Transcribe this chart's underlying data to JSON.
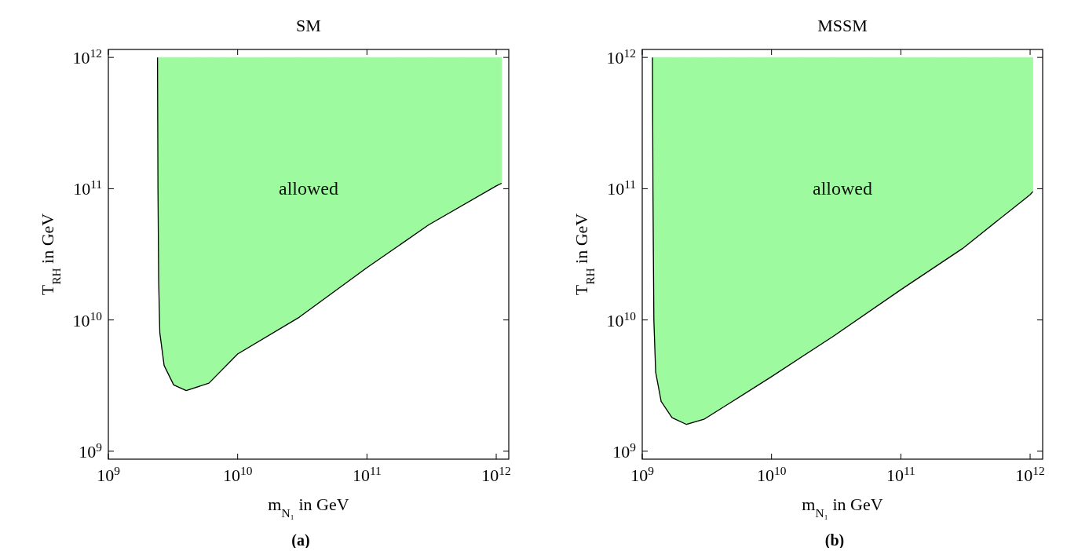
{
  "chart_data": [
    {
      "type": "line",
      "title": "SM",
      "xlabel": "m$_{N₁}$ in GeV",
      "ylabel": "T$_{RH}$ in GeV",
      "log": "xy",
      "grid": false,
      "xlim": [
        1000000000.0,
        1250000000000.0
      ],
      "ylim": [
        870000000.0,
        1150000000000.0
      ],
      "xticks": [
        {
          "value": 1000000000.0,
          "label": "10$^{9}$"
        },
        {
          "value": 10000000000.0,
          "label": "10$^{10}$"
        },
        {
          "value": 100000000000.0,
          "label": "10$^{11}$"
        },
        {
          "value": 1000000000000.0,
          "label": "10$^{12}$"
        }
      ],
      "yticks": [
        {
          "value": 1000000000.0,
          "label": "10$^{9}$"
        },
        {
          "value": 10000000000.0,
          "label": "10$^{10}$"
        },
        {
          "value": 100000000000.0,
          "label": "10$^{11}$"
        },
        {
          "value": 1000000000000.0,
          "label": "10$^{12}$"
        }
      ],
      "series": [
        {
          "color": "#000000",
          "colors": [
            "#9efa9e",
            "#9efa9e",
            "#9efa9e",
            "#9efa9e",
            "#9efa9e",
            "#9efa9e",
            "#9efa9e",
            "#9efa9e",
            "#9efa9e",
            "#9efa9e",
            "#9efa9e",
            "#9efa9e",
            "#9efa9e",
            "#9efa9e"
          ],
          "x": [
            2400000000.0,
            2420000000.0,
            2450000000.0,
            2500000000.0,
            2700000000.0,
            3200000000.0,
            4000000000.0,
            6000000000.0,
            10000000000.0,
            30000000000.0,
            100000000000.0,
            300000000000.0,
            1000000000000.0,
            1100000000000.0
          ],
          "values": [
            1000000000000.0,
            100000000000.0,
            20000000000.0,
            8000000000.0,
            4500000000.0,
            3200000000.0,
            2900000000.0,
            3300000000.0,
            5500000000.0,
            10500000000.0,
            25000000000.0,
            53000000000.0,
            105000000000.0,
            110000000000.0
          ],
          "lower": [
            1000000000000.0,
            100000000000.0,
            20000000000.0,
            8000000000.0,
            4500000000.0,
            3200000000.0,
            2900000000.0,
            3300000000.0,
            5500000000.0,
            10500000000.0,
            25000000000.0,
            53000000000.0,
            105000000000.0,
            110000000000.0
          ],
          "upper": [
            1000000000000.0,
            1000000000000.0,
            1000000000000.0,
            1000000000000.0,
            1000000000000.0,
            1000000000000.0,
            1000000000000.0,
            1000000000000.0,
            1000000000000.0,
            1000000000000.0,
            1000000000000.0,
            1000000000000.0,
            1000000000000.0,
            1000000000000.0
          ]
        }
      ],
      "annotations": [
        "allowed",
        "(a)"
      ]
    },
    {
      "type": "line",
      "title": "MSSM",
      "xlabel": "m$_{N₁}$ in GeV",
      "ylabel": "T$_{RH}$ in GeV",
      "log": "xy",
      "grid": false,
      "xlim": [
        1000000000.0,
        1250000000000.0
      ],
      "ylim": [
        870000000.0,
        1150000000000.0
      ],
      "xticks": [
        {
          "value": 1000000000.0,
          "label": "10$^{9}$"
        },
        {
          "value": 10000000000.0,
          "label": "10$^{10}$"
        },
        {
          "value": 100000000000.0,
          "label": "10$^{11}$"
        },
        {
          "value": 1000000000000.0,
          "label": "10$^{12}$"
        }
      ],
      "yticks": [
        {
          "value": 1000000000.0,
          "label": "10$^{9}$"
        },
        {
          "value": 10000000000.0,
          "label": "10$^{10}$"
        },
        {
          "value": 100000000000.0,
          "label": "10$^{11}$"
        },
        {
          "value": 1000000000000.0,
          "label": "10$^{12}$"
        }
      ],
      "series": [
        {
          "color": "#000000",
          "colors": [
            "#9efa9e",
            "#9efa9e",
            "#9efa9e",
            "#9efa9e",
            "#9efa9e",
            "#9efa9e",
            "#9efa9e",
            "#9efa9e",
            "#9efa9e",
            "#9efa9e",
            "#9efa9e",
            "#9efa9e",
            "#9efa9e",
            "#9efa9e",
            "#9efa9e"
          ],
          "x": [
            1200000000.0,
            1210000000.0,
            1230000000.0,
            1270000000.0,
            1400000000.0,
            1700000000.0,
            2200000000.0,
            3000000000.0,
            5000000000.0,
            10000000000.0,
            30000000000.0,
            100000000000.0,
            300000000000.0,
            1000000000000.0,
            1050000000000.0
          ],
          "values": [
            1000000000000.0,
            100000000000.0,
            10000000000.0,
            4000000000.0,
            2400000000.0,
            1800000000.0,
            1600000000.0,
            1750000000.0,
            2400000000.0,
            3700000000.0,
            7500000000.0,
            17000000000.0,
            35000000000.0,
            90000000000.0,
            95000000000.0
          ],
          "lower": [
            1000000000000.0,
            100000000000.0,
            10000000000.0,
            4000000000.0,
            2400000000.0,
            1800000000.0,
            1600000000.0,
            1750000000.0,
            2400000000.0,
            3700000000.0,
            7500000000.0,
            17000000000.0,
            35000000000.0,
            90000000000.0,
            95000000000.0
          ],
          "upper": [
            1000000000000.0,
            1000000000000.0,
            1000000000000.0,
            1000000000000.0,
            1000000000000.0,
            1000000000000.0,
            1000000000000.0,
            1000000000000.0,
            1000000000000.0,
            1000000000000.0,
            1000000000000.0,
            1000000000000.0,
            1000000000000.0,
            1000000000000.0,
            1000000000000.0
          ]
        }
      ],
      "annotations": [
        "allowed",
        "(b)"
      ]
    }
  ]
}
